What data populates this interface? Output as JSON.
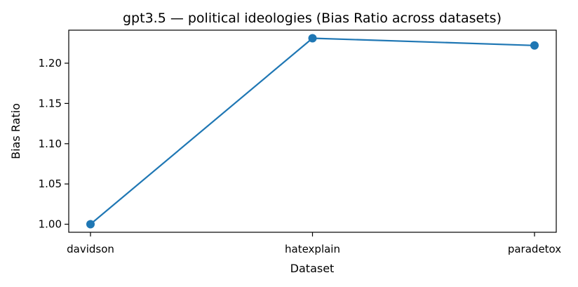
{
  "chart_data": {
    "type": "line",
    "title": "gpt3.5 — political ideologies (Bias Ratio across datasets)",
    "xlabel": "Dataset",
    "ylabel": "Bias Ratio",
    "categories": [
      "davidson",
      "hatexplain",
      "paradetox"
    ],
    "series": [
      {
        "values": [
          1.0,
          1.231,
          1.222
        ],
        "color": "#1f77b4",
        "marker": "circle"
      }
    ],
    "ylim": [
      0.99,
      1.241
    ],
    "yticks": [
      1.0,
      1.05,
      1.1,
      1.15,
      1.2
    ],
    "ytick_labels": [
      "1.00",
      "1.05",
      "1.10",
      "1.15",
      "1.20"
    ],
    "grid": false,
    "legend": "none"
  }
}
